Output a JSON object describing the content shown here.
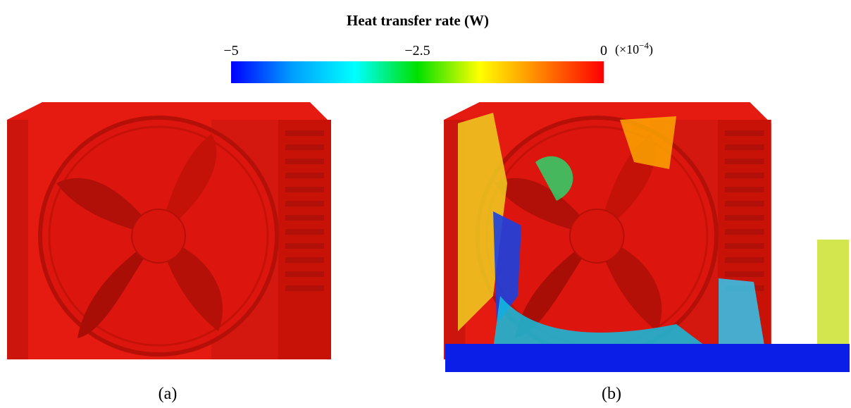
{
  "colorbar": {
    "title": "Heat transfer rate (W)",
    "lim": [
      -5,
      0
    ],
    "ticks": [
      {
        "value": -5,
        "label": "−5"
      },
      {
        "value": -2.5,
        "label": "−2.5"
      },
      {
        "value": 0,
        "label": "0"
      }
    ],
    "multiplier": {
      "prefix": "(×10",
      "exponent": "−4",
      "suffix": ")"
    },
    "colormap": [
      "#0000ff",
      "#00a0ff",
      "#00ffff",
      "#00e000",
      "#ffff00",
      "#ff8000",
      "#ff0000"
    ]
  },
  "panels": [
    {
      "label": "(a)"
    },
    {
      "label": "(b)"
    }
  ]
}
